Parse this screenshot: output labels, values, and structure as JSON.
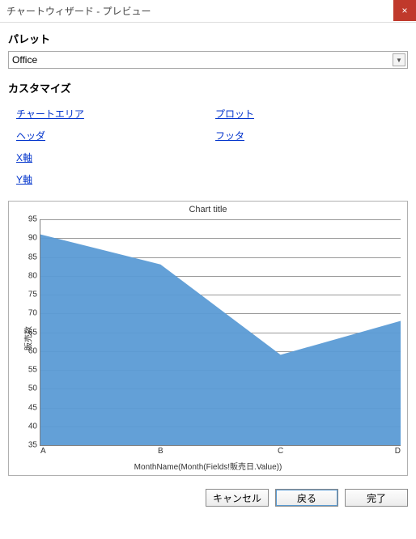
{
  "window": {
    "title": "チャートウィザード - プレビュー",
    "close_icon": "×"
  },
  "palette": {
    "section_label": "パレット",
    "selected": "Office"
  },
  "customize": {
    "section_label": "カスタマイズ",
    "links": {
      "chart_area": "チャートエリア",
      "plot": "プロット",
      "header": "ヘッダ",
      "footer": "フッタ",
      "x_axis": "X軸",
      "y_axis": "Y軸"
    }
  },
  "chart": {
    "type": "area",
    "title": "Chart title",
    "series_color": "#5b9bd5",
    "series_opacity": 0.95,
    "background_color": "#ffffff",
    "grid_color": "#808080",
    "x": {
      "categories": [
        "A",
        "B",
        "C",
        "D"
      ],
      "title": "MonthName(Month(Fields!販売日.Value))"
    },
    "y": {
      "title": "販売数",
      "min": 35,
      "max": 95,
      "step": 5,
      "ticks": [
        35,
        40,
        45,
        50,
        55,
        60,
        65,
        70,
        75,
        80,
        85,
        90,
        95
      ]
    },
    "values": [
      91,
      83,
      59,
      68
    ]
  },
  "buttons": {
    "cancel": "キャンセル",
    "back": "戻る",
    "finish": "完了"
  }
}
